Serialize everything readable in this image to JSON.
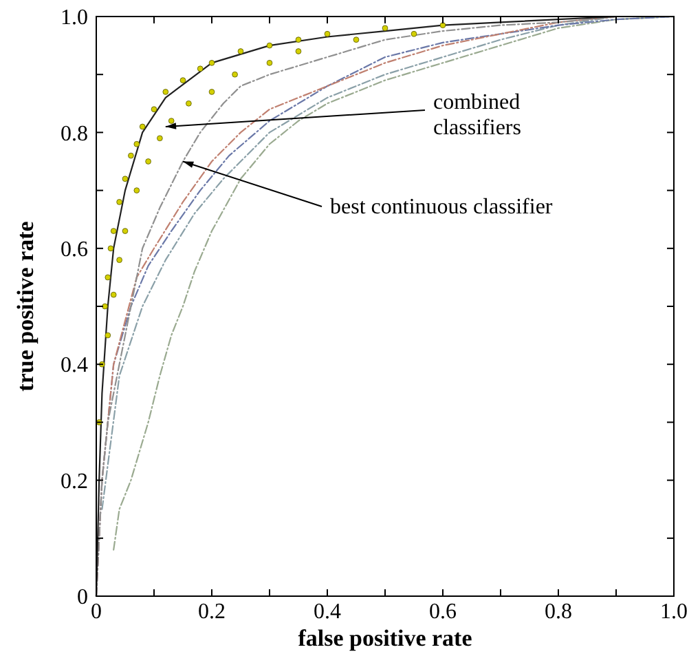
{
  "chart_data": {
    "type": "line",
    "xlabel": "false positive rate",
    "ylabel": "true positive rate",
    "xlim": [
      0,
      1
    ],
    "ylim": [
      0,
      1
    ],
    "xticks": [
      0,
      {
        "value": 0.1,
        "label": null
      },
      0.2,
      {
        "value": 0.3,
        "label": null
      },
      0.4,
      {
        "value": 0.5,
        "label": null
      },
      0.6,
      {
        "value": 0.7,
        "label": null
      },
      0.8,
      {
        "value": 0.9,
        "label": null
      },
      "1.0"
    ],
    "yticks": [
      0,
      {
        "value": 0.1,
        "label": null
      },
      0.2,
      {
        "value": 0.3,
        "label": null
      },
      0.4,
      {
        "value": 0.5,
        "label": null
      },
      0.6,
      {
        "value": 0.7,
        "label": null
      },
      0.8,
      {
        "value": 0.9,
        "label": null
      },
      {
        "value": 1,
        "label": "1.0"
      }
    ],
    "grid": false,
    "line_style": "dashed",
    "series": [
      {
        "color": "#9aaa90",
        "x": [
          0.03,
          0.04,
          0.06,
          0.09,
          0.11,
          0.13,
          0.15,
          0.17,
          0.2,
          0.25,
          0.3,
          0.35,
          0.4,
          0.5,
          0.6,
          0.7,
          0.8,
          0.9,
          1
        ],
        "values": [
          0.08,
          0.15,
          0.2,
          0.3,
          0.38,
          0.45,
          0.5,
          0.56,
          0.63,
          0.72,
          0.78,
          0.82,
          0.85,
          0.89,
          0.92,
          0.95,
          0.98,
          0.995,
          1
        ]
      },
      {
        "color": "#8aa0a8",
        "x": [
          0.01,
          0.04,
          0.08,
          0.12,
          0.17,
          0.22,
          0.3,
          0.4,
          0.5,
          0.6,
          0.7,
          0.8,
          0.9,
          1
        ],
        "values": [
          0.15,
          0.38,
          0.5,
          0.58,
          0.66,
          0.72,
          0.8,
          0.86,
          0.9,
          0.93,
          0.96,
          0.985,
          1,
          1
        ]
      },
      {
        "color": "#6a78a8",
        "x": [
          0,
          0.01,
          0.03,
          0.06,
          0.09,
          0.13,
          0.18,
          0.23,
          0.3,
          0.4,
          0.5,
          0.6,
          0.7,
          0.8,
          0.9,
          1
        ],
        "values": [
          0,
          0.2,
          0.4,
          0.5,
          0.57,
          0.63,
          0.7,
          0.76,
          0.82,
          0.88,
          0.93,
          0.955,
          0.97,
          0.985,
          0.995,
          1
        ]
      },
      {
        "color": "#c08070",
        "x": [
          0,
          0.01,
          0.03,
          0.07,
          0.1,
          0.15,
          0.2,
          0.25,
          0.3,
          0.4,
          0.5,
          0.6,
          0.7,
          0.8,
          0.9,
          1
        ],
        "values": [
          0,
          0.2,
          0.4,
          0.55,
          0.6,
          0.68,
          0.75,
          0.8,
          0.84,
          0.88,
          0.92,
          0.95,
          0.97,
          0.99,
          1,
          1
        ]
      },
      {
        "color": "#909090",
        "x": [
          0,
          0.01,
          0.02,
          0.04,
          0.06,
          0.08,
          0.11,
          0.15,
          0.18,
          0.22,
          0.25,
          0.3,
          0.4,
          0.5,
          0.6,
          0.7,
          0.8,
          0.9,
          1
        ],
        "values": [
          0,
          0.2,
          0.3,
          0.4,
          0.5,
          0.6,
          0.67,
          0.75,
          0.8,
          0.85,
          0.88,
          0.9,
          0.93,
          0.96,
          0.975,
          0.985,
          0.99,
          1,
          1
        ]
      },
      {
        "color": "#202020",
        "line_style": "solid",
        "x": [
          0,
          0.005,
          0.01,
          0.02,
          0.03,
          0.05,
          0.08,
          0.12,
          0.2,
          0.3,
          0.4,
          0.5,
          0.6,
          0.7,
          0.8,
          0.9,
          1
        ],
        "values": [
          0,
          0.2,
          0.35,
          0.5,
          0.6,
          0.7,
          0.8,
          0.86,
          0.92,
          0.95,
          0.965,
          0.975,
          0.985,
          0.99,
          0.995,
          1,
          1
        ]
      },
      {
        "type": "scatter",
        "marker": "circle",
        "color": "#d4d000",
        "x": [
          0.005,
          0.01,
          0.015,
          0.02,
          0.025,
          0.03,
          0.04,
          0.05,
          0.06,
          0.07,
          0.08,
          0.1,
          0.12,
          0.15,
          0.18,
          0.2,
          0.25,
          0.3,
          0.35,
          0.4,
          0.5,
          0.6,
          0.02,
          0.03,
          0.04,
          0.05,
          0.07,
          0.09,
          0.11,
          0.13,
          0.16,
          0.2,
          0.24,
          0.3,
          0.35,
          0.45,
          0.55
        ],
        "values": [
          0.3,
          0.4,
          0.5,
          0.55,
          0.6,
          0.63,
          0.68,
          0.72,
          0.76,
          0.78,
          0.81,
          0.84,
          0.87,
          0.89,
          0.91,
          0.92,
          0.94,
          0.95,
          0.96,
          0.97,
          0.98,
          0.985,
          0.45,
          0.52,
          0.58,
          0.63,
          0.7,
          0.75,
          0.79,
          0.82,
          0.85,
          0.87,
          0.9,
          0.92,
          0.94,
          0.96,
          0.97
        ]
      }
    ],
    "annotations": [
      {
        "text": "combined classifiers",
        "x": 0.12,
        "y": 0.81
      },
      {
        "text": "best continuous classifier",
        "x": 0.15,
        "y": 0.75
      }
    ]
  }
}
